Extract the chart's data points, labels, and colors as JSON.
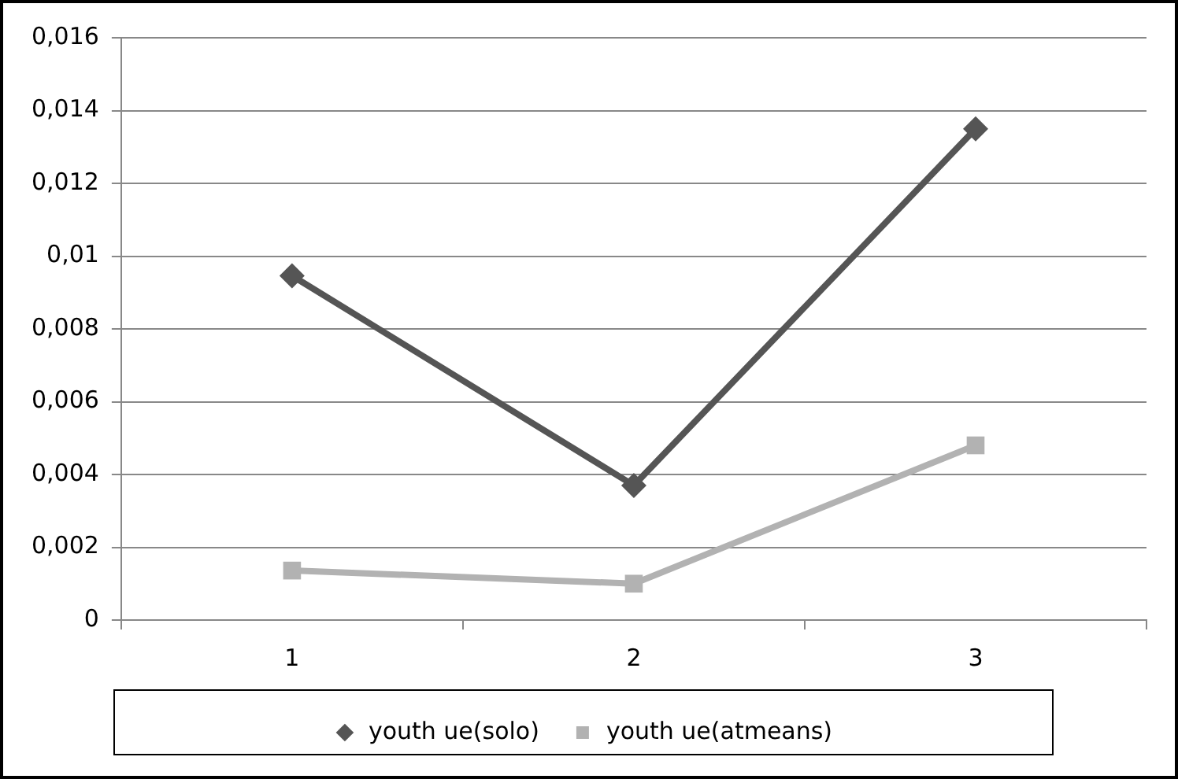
{
  "chart_data": {
    "type": "line",
    "categories": [
      "1",
      "2",
      "3"
    ],
    "series": [
      {
        "name": "youth ue(solo)",
        "color": "#555555",
        "marker": "diamond",
        "values": [
          0.00946,
          0.0037,
          0.0135
        ]
      },
      {
        "name": "youth ue(atmeans)",
        "color": "#b2b2b2",
        "marker": "square",
        "values": [
          0.00136,
          0.001,
          0.0048
        ]
      }
    ],
    "ylim": [
      0,
      0.016
    ],
    "yticks": [
      0,
      {
        "value": 0.002,
        "label": "0,002"
      },
      {
        "value": 0.004,
        "label": "0,004"
      },
      {
        "value": 0.006,
        "label": "0,006"
      },
      {
        "value": 0.008,
        "label": "0,008"
      },
      {
        "value": 0.01,
        "label": "0,01"
      },
      {
        "value": 0.012,
        "label": "0,012"
      },
      {
        "value": 0.014,
        "label": "0,014"
      },
      {
        "value": 0.016,
        "label": "0,016"
      }
    ],
    "grid": "y",
    "legend": "bottom",
    "line_style": "solid"
  }
}
